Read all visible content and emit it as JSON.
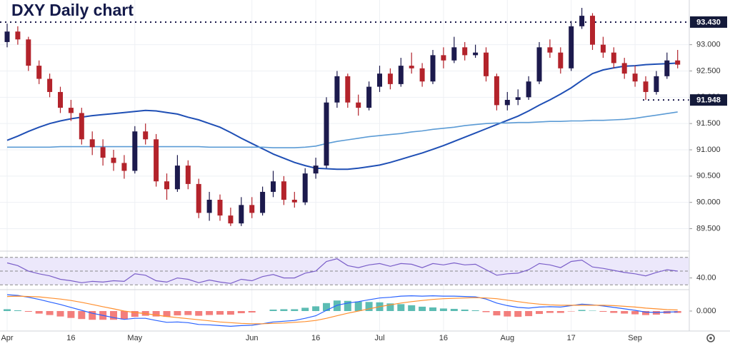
{
  "chart_data": [
    {
      "type": "candlestick",
      "title": "DXY Daily chart",
      "categories": [
        "Apr",
        null,
        null,
        null,
        null,
        null,
        "16",
        null,
        null,
        null,
        null,
        null,
        "May",
        null,
        null,
        null,
        null,
        null,
        null,
        null,
        null,
        null,
        null,
        "Jun",
        null,
        null,
        null,
        null,
        null,
        "16",
        null,
        null,
        null,
        null,
        null,
        "Jul",
        null,
        null,
        null,
        null,
        null,
        "16",
        null,
        null,
        null,
        null,
        null,
        "Aug",
        null,
        null,
        null,
        null,
        null,
        "17",
        null,
        null,
        null,
        null,
        null,
        "Sep",
        null,
        null,
        null,
        null
      ],
      "open": [
        93.05,
        93.25,
        93.1,
        92.6,
        92.35,
        92.1,
        91.8,
        91.7,
        91.2,
        91.05,
        90.85,
        90.75,
        90.6,
        91.35,
        91.2,
        90.4,
        90.25,
        90.7,
        90.35,
        89.8,
        90.05,
        89.75,
        89.6,
        89.95,
        89.8,
        90.2,
        90.4,
        90.05,
        90.0,
        90.55,
        90.7,
        91.9,
        92.4,
        91.9,
        91.8,
        92.2,
        92.45,
        92.25,
        92.6,
        92.55,
        92.3,
        92.8,
        92.7,
        92.95,
        92.8,
        92.85,
        92.4,
        91.85,
        91.95,
        92.0,
        92.3,
        92.95,
        92.85,
        92.55,
        93.35,
        93.55,
        93.0,
        92.85,
        92.65,
        92.45,
        92.3,
        92.1,
        92.4,
        92.7
      ],
      "high": [
        93.4,
        93.35,
        93.15,
        92.7,
        92.45,
        92.2,
        91.95,
        91.8,
        91.35,
        91.2,
        91.0,
        90.9,
        91.45,
        91.5,
        91.3,
        90.55,
        90.9,
        90.8,
        90.45,
        90.2,
        90.15,
        89.9,
        90.1,
        90.1,
        90.3,
        90.6,
        90.5,
        90.2,
        90.65,
        90.85,
        92.0,
        92.5,
        92.45,
        92.05,
        92.3,
        92.6,
        92.55,
        92.75,
        92.85,
        92.65,
        92.9,
        92.95,
        93.15,
        93.05,
        93.0,
        92.95,
        92.45,
        92.1,
        92.15,
        92.4,
        93.05,
        93.1,
        92.95,
        93.45,
        93.7,
        93.6,
        93.15,
        92.95,
        92.75,
        92.6,
        92.4,
        92.5,
        92.85,
        92.9
      ],
      "low": [
        92.95,
        93.0,
        92.5,
        92.25,
        92.0,
        91.7,
        91.55,
        91.1,
        90.9,
        90.7,
        90.6,
        90.45,
        90.55,
        91.1,
        90.3,
        90.05,
        90.2,
        90.25,
        89.7,
        89.65,
        89.65,
        89.55,
        89.55,
        89.7,
        89.75,
        90.1,
        89.95,
        89.9,
        89.95,
        90.45,
        90.65,
        91.8,
        91.8,
        91.65,
        91.75,
        92.1,
        92.15,
        92.2,
        92.45,
        92.2,
        92.25,
        92.55,
        92.65,
        92.7,
        92.75,
        92.3,
        91.75,
        91.75,
        91.85,
        91.95,
        92.25,
        92.75,
        92.45,
        92.5,
        93.3,
        92.9,
        92.75,
        92.55,
        92.35,
        92.2,
        91.95,
        92.05,
        92.35,
        92.55
      ],
      "close": [
        93.25,
        93.1,
        92.6,
        92.35,
        92.1,
        91.8,
        91.7,
        91.2,
        91.05,
        90.85,
        90.75,
        90.6,
        91.35,
        91.2,
        90.4,
        90.25,
        90.7,
        90.35,
        89.8,
        90.05,
        89.75,
        89.6,
        89.95,
        89.8,
        90.2,
        90.4,
        90.05,
        90.0,
        90.55,
        90.7,
        91.9,
        92.4,
        91.9,
        91.8,
        92.2,
        92.45,
        92.25,
        92.6,
        92.55,
        92.3,
        92.8,
        92.7,
        92.95,
        92.8,
        92.85,
        92.4,
        91.85,
        91.95,
        92.0,
        92.3,
        92.95,
        92.85,
        92.55,
        93.35,
        93.55,
        93.0,
        92.85,
        92.65,
        92.45,
        92.3,
        92.1,
        92.4,
        92.7,
        92.62
      ],
      "up_color": "#1c1a4d",
      "down_color": "#b3232b",
      "series": [
        {
          "color": "#1f4fb5",
          "values": [
            91.18,
            91.26,
            91.35,
            91.43,
            91.5,
            91.55,
            91.59,
            91.62,
            91.65,
            91.67,
            91.69,
            91.71,
            91.73,
            91.75,
            91.74,
            91.71,
            91.68,
            91.62,
            91.57,
            91.5,
            91.43,
            91.33,
            91.22,
            91.12,
            91.02,
            90.92,
            90.84,
            90.76,
            90.7,
            90.65,
            90.64,
            90.63,
            90.63,
            90.65,
            90.68,
            90.71,
            90.76,
            90.82,
            90.88,
            90.94,
            91.01,
            91.08,
            91.16,
            91.24,
            91.32,
            91.4,
            91.48,
            91.56,
            91.64,
            91.74,
            91.85,
            91.95,
            92.06,
            92.18,
            92.32,
            92.45,
            92.52,
            92.56,
            92.59,
            92.6,
            92.62,
            92.63,
            92.64,
            92.65
          ]
        },
        {
          "color": "#5b9bd5",
          "values": [
            91.05,
            91.05,
            91.05,
            91.05,
            91.05,
            91.06,
            91.06,
            91.06,
            91.06,
            91.06,
            91.06,
            91.06,
            91.06,
            91.06,
            91.06,
            91.06,
            91.06,
            91.06,
            91.06,
            91.05,
            91.05,
            91.05,
            91.05,
            91.05,
            91.05,
            91.04,
            91.04,
            91.04,
            91.05,
            91.07,
            91.12,
            91.16,
            91.19,
            91.22,
            91.25,
            91.27,
            91.29,
            91.31,
            91.34,
            91.36,
            91.39,
            91.41,
            91.43,
            91.46,
            91.48,
            91.5,
            91.51,
            91.51,
            91.52,
            91.52,
            91.53,
            91.54,
            91.54,
            91.55,
            91.55,
            91.56,
            91.56,
            91.57,
            91.58,
            91.6,
            91.63,
            91.66,
            91.69,
            91.72
          ]
        }
      ],
      "ylim": [
        89.1,
        93.85
      ],
      "yticks": [
        {
          "value": 89.5,
          "label": "89.500"
        },
        {
          "value": 90,
          "label": "90.000"
        },
        {
          "value": 90.5,
          "label": "90.500"
        },
        {
          "value": 91,
          "label": "91.000"
        },
        {
          "value": 91.5,
          "label": "91.500"
        },
        {
          "value": 92,
          "label": "92.000"
        },
        {
          "value": 92.5,
          "label": "92.500"
        },
        {
          "value": 93,
          "label": "93.000"
        }
      ],
      "levels": [
        {
          "value": 93.43,
          "label": "93.430"
        },
        {
          "value": 91.948,
          "label": "91.948"
        }
      ],
      "grid": true
    },
    {
      "type": "line",
      "color": "#7b5fc9",
      "band_color": "#ece8fb",
      "values": [
        62,
        58,
        50,
        46,
        43,
        38,
        36,
        33,
        35,
        34,
        36,
        35,
        46,
        44,
        36,
        34,
        40,
        38,
        33,
        37,
        34,
        32,
        38,
        36,
        42,
        45,
        40,
        40,
        47,
        50,
        64,
        68,
        58,
        55,
        59,
        61,
        57,
        61,
        60,
        55,
        61,
        59,
        62,
        59,
        60,
        52,
        44,
        46,
        47,
        52,
        61,
        59,
        55,
        64,
        66,
        56,
        54,
        51,
        48,
        46,
        43,
        48,
        52,
        50
      ],
      "levels": [
        30,
        50,
        70
      ],
      "ylim": [
        24,
        76
      ],
      "yticks": [
        {
          "value": 40,
          "label": "40.00"
        }
      ]
    },
    {
      "type": "macd",
      "series": [
        {
          "color": "#2962ff",
          "values": [
            0.45,
            0.43,
            0.38,
            0.32,
            0.25,
            0.18,
            0.1,
            0.02,
            -0.06,
            -0.12,
            -0.18,
            -0.23,
            -0.2,
            -0.2,
            -0.26,
            -0.31,
            -0.3,
            -0.32,
            -0.37,
            -0.38,
            -0.4,
            -0.42,
            -0.4,
            -0.39,
            -0.35,
            -0.3,
            -0.28,
            -0.26,
            -0.2,
            -0.13,
            0.02,
            0.16,
            0.22,
            0.26,
            0.31,
            0.36,
            0.38,
            0.41,
            0.42,
            0.41,
            0.42,
            0.41,
            0.41,
            0.4,
            0.39,
            0.33,
            0.22,
            0.15,
            0.1,
            0.08,
            0.11,
            0.12,
            0.11,
            0.15,
            0.19,
            0.17,
            0.14,
            0.1,
            0.06,
            0.02,
            -0.03,
            -0.04,
            -0.03,
            -0.02
          ]
        },
        {
          "color": "#ff8f2e",
          "values": [
            0.4,
            0.41,
            0.4,
            0.39,
            0.36,
            0.33,
            0.29,
            0.24,
            0.18,
            0.12,
            0.06,
            0.0,
            -0.04,
            -0.07,
            -0.11,
            -0.15,
            -0.18,
            -0.21,
            -0.24,
            -0.27,
            -0.3,
            -0.32,
            -0.34,
            -0.35,
            -0.35,
            -0.34,
            -0.33,
            -0.31,
            -0.29,
            -0.26,
            -0.2,
            -0.13,
            -0.06,
            0.0,
            0.06,
            0.12,
            0.17,
            0.22,
            0.26,
            0.29,
            0.32,
            0.34,
            0.35,
            0.36,
            0.37,
            0.36,
            0.34,
            0.3,
            0.26,
            0.22,
            0.19,
            0.17,
            0.16,
            0.16,
            0.16,
            0.16,
            0.16,
            0.15,
            0.13,
            0.11,
            0.08,
            0.06,
            0.04,
            0.03
          ]
        }
      ],
      "histogram": [
        0.05,
        0.02,
        -0.02,
        -0.07,
        -0.11,
        -0.15,
        -0.19,
        -0.22,
        -0.24,
        -0.24,
        -0.24,
        -0.23,
        -0.16,
        -0.13,
        -0.15,
        -0.16,
        -0.12,
        -0.11,
        -0.13,
        -0.11,
        -0.1,
        -0.1,
        -0.06,
        -0.04,
        0.0,
        0.04,
        0.05,
        0.05,
        0.09,
        0.13,
        0.22,
        0.29,
        0.28,
        0.26,
        0.25,
        0.24,
        0.21,
        0.19,
        0.16,
        0.12,
        0.1,
        0.07,
        0.06,
        0.04,
        0.02,
        -0.03,
        -0.12,
        -0.15,
        -0.16,
        -0.14,
        -0.08,
        -0.05,
        -0.05,
        -0.01,
        0.03,
        0.01,
        -0.02,
        -0.05,
        -0.07,
        -0.09,
        -0.11,
        -0.1,
        -0.07,
        -0.05
      ],
      "pos_color": "#26a69a",
      "neg_color": "#ef5350",
      "ylim": [
        -0.55,
        0.55
      ],
      "yticks": [
        {
          "value": 0,
          "label": "0.000"
        }
      ]
    }
  ]
}
